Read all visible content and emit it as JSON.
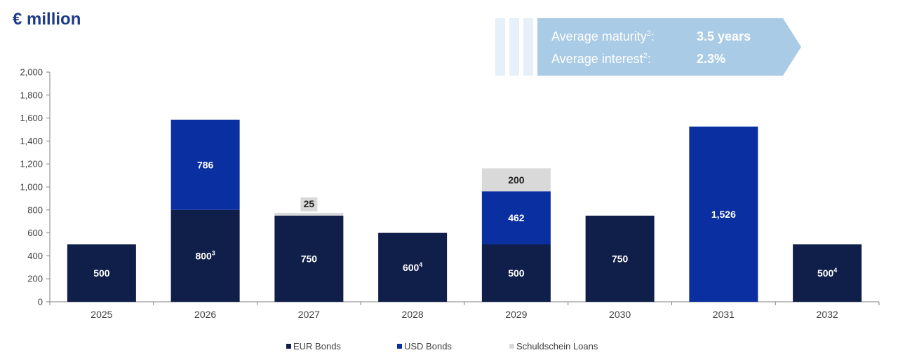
{
  "header": {
    "title": "€ million"
  },
  "callout": {
    "rows": [
      {
        "label": "Average maturity",
        "sup": "2",
        "suffix": ":",
        "value": "3.5 years"
      },
      {
        "label": "Average interest",
        "sup": "2",
        "suffix": ":",
        "value": "2.3%"
      }
    ]
  },
  "colors": {
    "eur": "#0f1f4a",
    "usd": "#0a2fa0",
    "schuld": "#d9d9d9",
    "callout": "#a9cbe6",
    "axis": "#808080"
  },
  "legend": [
    {
      "name": "EUR Bonds",
      "color": "#0f1f4a"
    },
    {
      "name": "USD Bonds",
      "color": "#0a2fa0"
    },
    {
      "name": "Schuldschein Loans",
      "color": "#d9d9d9"
    }
  ],
  "chart_data": {
    "type": "bar",
    "stacked": true,
    "categories": [
      "2025",
      "2026",
      "2027",
      "2028",
      "2029",
      "2030",
      "2031",
      "2032"
    ],
    "ylim": [
      0,
      2000
    ],
    "yticks": [
      "0",
      "200",
      "400",
      "600",
      "800",
      "1,000",
      "1,200",
      "1,400",
      "1,600",
      "1,800",
      "2,000"
    ],
    "series": [
      {
        "name": "EUR Bonds",
        "values": [
          500,
          800,
          750,
          600,
          500,
          750,
          0,
          500
        ],
        "labels": [
          "500",
          "800",
          "750",
          "600",
          "500",
          "750",
          "",
          "500"
        ],
        "sups": [
          "",
          "3",
          "",
          "4",
          "",
          "",
          "",
          "4"
        ]
      },
      {
        "name": "USD Bonds",
        "values": [
          0,
          786,
          0,
          0,
          462,
          0,
          1526,
          0
        ],
        "labels": [
          "",
          "786",
          "",
          "",
          "462",
          "",
          "1,526",
          ""
        ],
        "sups": [
          "",
          "",
          "",
          "",
          "",
          "",
          "",
          ""
        ]
      },
      {
        "name": "Schuldschein Loans",
        "values": [
          0,
          0,
          25,
          0,
          200,
          0,
          0,
          0
        ],
        "labels": [
          "",
          "",
          "25",
          "",
          "200",
          "",
          "",
          ""
        ],
        "sups": [
          "",
          "",
          "",
          "",
          "",
          "",
          "",
          ""
        ]
      }
    ],
    "legend_position": "bottom",
    "grid": false
  }
}
